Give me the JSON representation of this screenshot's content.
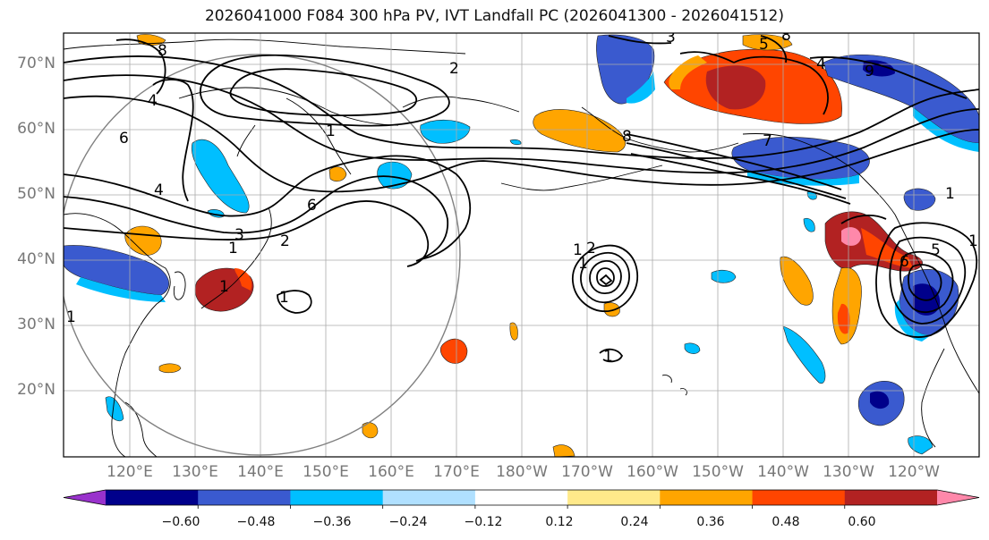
{
  "title": "2026041000 F084 300 hPa PV, IVT Landfall PC (2026041300 - 2026041512)",
  "lat_labels": [
    "70°N",
    "60°N",
    "50°N",
    "40°N",
    "30°N",
    "20°N"
  ],
  "lon_labels": [
    "120°E",
    "130°E",
    "140°E",
    "150°E",
    "160°E",
    "170°E",
    "180°W",
    "170°W",
    "160°W",
    "150°W",
    "140°W",
    "130°W",
    "120°W"
  ],
  "colorbar": {
    "colors": [
      "#9932cc",
      "#00008b",
      "#3a5acf",
      "#00bfff",
      "#b0e0ff",
      "#ffffff",
      "#ffe98a",
      "#ffa500",
      "#ff4500",
      "#b22222",
      "#ff88aa"
    ],
    "labels": [
      "−0.60",
      "−0.48",
      "−0.36",
      "−0.24",
      "−0.12",
      "0.12",
      "0.24",
      "0.36",
      "0.48",
      "0.60"
    ]
  },
  "contour_labels": [
    "8",
    "4",
    "6",
    "4",
    "1",
    "6",
    "3",
    "2",
    "1",
    "2",
    "3",
    "7",
    "5",
    "4",
    "8",
    "8",
    "6",
    "5",
    "9",
    "1",
    "2",
    "1",
    "1",
    "1",
    "1",
    "1",
    "1",
    "1"
  ]
}
